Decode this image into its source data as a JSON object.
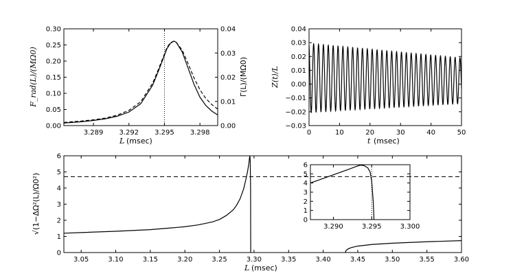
{
  "chart_data": [
    {
      "id": "panel-a",
      "type": "line",
      "xlabel_var": "L",
      "xlabel_unit": "(msec)",
      "ylabel_left": "F_rad(L)/(MΩ0)",
      "ylabel_right": "Γ(L)/(MΩ0)",
      "xlim": [
        3.2865,
        3.2995
      ],
      "xticks": [
        "3.289",
        "3.292",
        "3.295",
        "3.298"
      ],
      "xtick_values": [
        3.289,
        3.292,
        3.295,
        3.298
      ],
      "ylim": [
        0,
        0.3
      ],
      "yticks": [
        "0.00",
        "0.05",
        "0.10",
        "0.15",
        "0.20",
        "0.25",
        "0.30"
      ],
      "ylim_right": [
        0,
        0.04
      ],
      "yticks_right": [
        "0.00",
        "0.01",
        "0.02",
        "0.03",
        "0.04"
      ],
      "vline_x": 3.295,
      "series": [
        {
          "name": "F_rad",
          "style": "solid",
          "x": [
            3.2865,
            3.288,
            3.289,
            3.29,
            3.291,
            3.292,
            3.293,
            3.294,
            3.2945,
            3.295,
            3.2952,
            3.2955,
            3.2958,
            3.296,
            3.2965,
            3.297,
            3.2975,
            3.298,
            3.2985,
            3.299,
            3.2995
          ],
          "y": [
            0.008,
            0.012,
            0.016,
            0.021,
            0.029,
            0.042,
            0.068,
            0.125,
            0.17,
            0.218,
            0.238,
            0.255,
            0.262,
            0.258,
            0.228,
            0.178,
            0.128,
            0.088,
            0.062,
            0.045,
            0.033
          ]
        },
        {
          "name": "Gamma",
          "style": "dashed",
          "x": [
            3.2865,
            3.288,
            3.289,
            3.29,
            3.291,
            3.292,
            3.293,
            3.294,
            3.2945,
            3.295,
            3.2952,
            3.2955,
            3.2958,
            3.296,
            3.2965,
            3.297,
            3.2975,
            3.298,
            3.2985,
            3.299,
            3.2995
          ],
          "y": [
            0.0013,
            0.0019,
            0.0024,
            0.0031,
            0.0043,
            0.0063,
            0.0099,
            0.0175,
            0.0234,
            0.0296,
            0.0322,
            0.0343,
            0.0349,
            0.0344,
            0.0312,
            0.0256,
            0.0197,
            0.0148,
            0.0112,
            0.0087,
            0.0068
          ]
        }
      ]
    },
    {
      "id": "panel-b",
      "type": "line",
      "xlabel_var": "t",
      "xlabel_unit": "(msec)",
      "ylabel": "Z(t)/L",
      "xlim": [
        0,
        50
      ],
      "xticks": [
        "0",
        "10",
        "20",
        "30",
        "40",
        "50"
      ],
      "xtick_values": [
        0,
        10,
        20,
        30,
        40,
        50
      ],
      "ylim": [
        -0.03,
        0.04
      ],
      "yticks": [
        "−0.03",
        "−0.02",
        "−0.01",
        "0.00",
        "0.01",
        "0.02",
        "0.03",
        "0.04"
      ],
      "ytick_values": [
        -0.03,
        -0.02,
        -0.01,
        0.0,
        0.01,
        0.02,
        0.03,
        0.04
      ],
      "oscillation": {
        "period": 1.6,
        "start_center": 0.0045,
        "end_center": 0.0025,
        "start_amplitude": 0.025,
        "end_amplitude": 0.0165,
        "start_value": 0.028
      }
    },
    {
      "id": "panel-c",
      "type": "line",
      "xlabel_var": "L",
      "xlabel_unit": "(msec)",
      "ylabel": "√(1−ΔΩ²(L)/Ω0²)",
      "xlim": [
        3.025,
        3.6
      ],
      "xticks": [
        "3.05",
        "3.10",
        "3.15",
        "3.20",
        "3.25",
        "3.30",
        "3.35",
        "3.40",
        "3.45",
        "3.50",
        "3.55",
        "3.60"
      ],
      "xtick_values": [
        3.05,
        3.1,
        3.15,
        3.2,
        3.25,
        3.3,
        3.35,
        3.4,
        3.45,
        3.5,
        3.55,
        3.6
      ],
      "ylim": [
        0,
        6
      ],
      "yticks": [
        "0",
        "1",
        "2",
        "3",
        "4",
        "5",
        "6"
      ],
      "hline_y": 4.7,
      "series": [
        {
          "name": "branch-1",
          "style": "solid",
          "x": [
            3.025,
            3.05,
            3.1,
            3.15,
            3.2,
            3.22,
            3.24,
            3.25,
            3.26,
            3.27,
            3.275,
            3.28,
            3.285,
            3.288,
            3.2905,
            3.2925,
            3.2935,
            3.294,
            3.2945,
            3.295,
            3.2952
          ],
          "y": [
            1.2,
            1.24,
            1.32,
            1.42,
            1.6,
            1.72,
            1.9,
            2.05,
            2.3,
            2.65,
            2.95,
            3.35,
            3.95,
            4.5,
            5.0,
            5.5,
            5.9,
            6.0,
            5.7,
            4.0,
            0.0
          ]
        },
        {
          "name": "branch-2",
          "style": "solid",
          "x": [
            3.432,
            3.433,
            3.435,
            3.44,
            3.45,
            3.47,
            3.5,
            3.55,
            3.6
          ],
          "y": [
            0.0,
            0.12,
            0.2,
            0.3,
            0.4,
            0.5,
            0.58,
            0.67,
            0.74
          ]
        }
      ],
      "inset": {
        "xlim": [
          3.287,
          3.3
        ],
        "xticks": [
          "3.290",
          "3.295",
          "3.300"
        ],
        "xtick_values": [
          3.29,
          3.295,
          3.3
        ],
        "ylim": [
          0,
          6
        ],
        "yticks": [
          "0",
          "1",
          "2",
          "3",
          "4",
          "5",
          "6"
        ],
        "hline_y": 4.7,
        "vline_x": 3.295,
        "series": [
          {
            "name": "zoom",
            "style": "solid",
            "x": [
              3.287,
              3.288,
              3.289,
              3.29,
              3.291,
              3.292,
              3.2928,
              3.2935,
              3.294,
              3.2945,
              3.2948,
              3.295,
              3.2952,
              3.2953
            ],
            "y": [
              4.0,
              4.3,
              4.6,
              4.9,
              5.2,
              5.5,
              5.75,
              5.95,
              5.9,
              5.65,
              5.2,
              4.2,
              2.0,
              0.0
            ]
          }
        ]
      }
    }
  ]
}
